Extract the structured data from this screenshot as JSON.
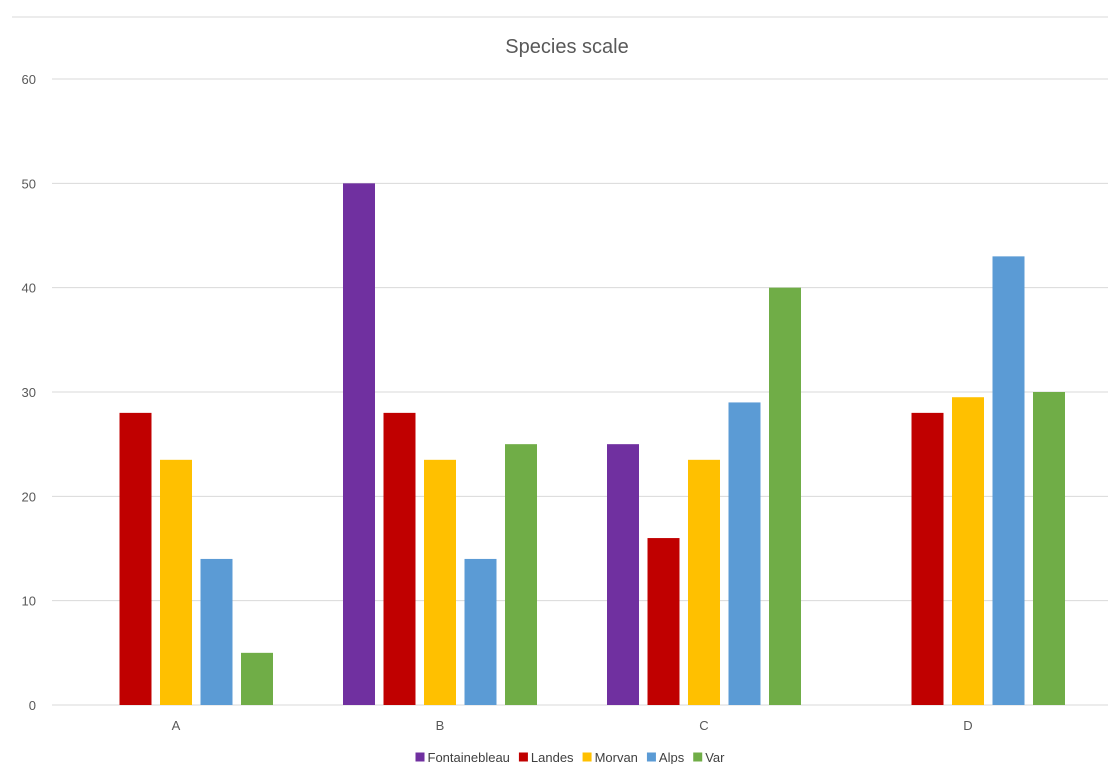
{
  "chart_data": {
    "type": "bar",
    "title": "Species scale",
    "xlabel": "",
    "ylabel": "",
    "categories": [
      "A",
      "B",
      "C",
      "D"
    ],
    "ylim": [
      0,
      60
    ],
    "yticks": [
      0,
      10,
      20,
      30,
      40,
      50,
      60
    ],
    "grid": true,
    "legend_position": "bottom",
    "series": [
      {
        "name": "Fontainebleau",
        "color": "#7030A0",
        "values": [
          null,
          50,
          25,
          null
        ]
      },
      {
        "name": "Landes",
        "color": "#C00000",
        "values": [
          28,
          28,
          16,
          28
        ]
      },
      {
        "name": "Morvan",
        "color": "#FFC000",
        "values": [
          23.5,
          23.5,
          23.5,
          29.5
        ]
      },
      {
        "name": "Alps",
        "color": "#5B9BD5",
        "values": [
          14,
          14,
          29,
          43
        ]
      },
      {
        "name": "Var",
        "color": "#70AD47",
        "values": [
          5,
          25,
          40,
          30
        ]
      }
    ]
  }
}
